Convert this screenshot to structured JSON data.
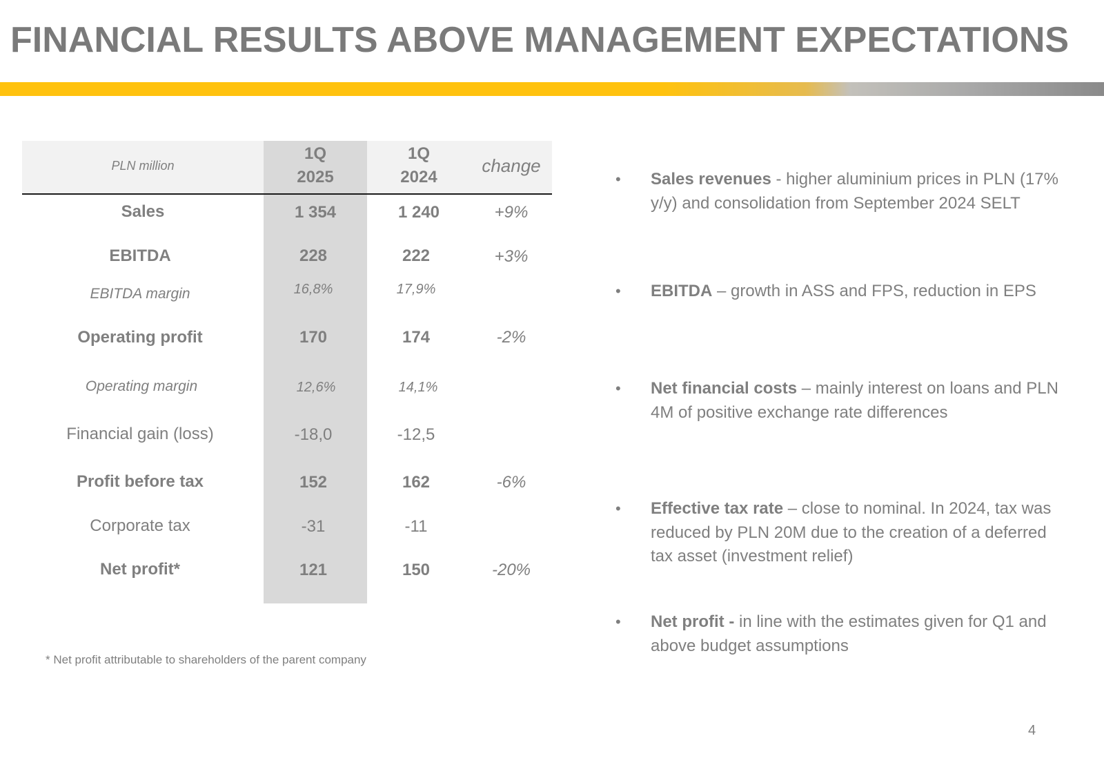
{
  "title": "FINANCIAL RESULTS ABOVE MANAGEMENT EXPECTATIONS",
  "colors": {
    "accent_bar": "#ffc20e",
    "highlight_column": "#d9d9d9",
    "header_bg": "#f2f2f2",
    "text": "#7f7f7f"
  },
  "table": {
    "unit_label": "PLN million",
    "col_2025": {
      "line1": "1Q",
      "line2": "2025"
    },
    "col_2024": {
      "line1": "1Q",
      "line2": "2024"
    },
    "col_change": "change",
    "rows": [
      {
        "label": "Sales",
        "v2025": "1 354",
        "v2024": "1 240",
        "change": "+9%"
      },
      {
        "label": "EBITDA",
        "v2025": "228",
        "v2024": "222",
        "change": "+3%"
      },
      {
        "label": "EBITDA margin",
        "v2025": "16,8%",
        "v2024": "17,9%",
        "change": ""
      },
      {
        "label": "Operating profit",
        "v2025": "170",
        "v2024": "174",
        "change": "-2%"
      },
      {
        "label": "Operating margin",
        "v2025": "12,6%",
        "v2024": "14,1%",
        "change": ""
      },
      {
        "label": "Financial gain (loss)",
        "v2025": "-18,0",
        "v2024": "-12,5",
        "change": ""
      },
      {
        "label": "Profit before tax",
        "v2025": "152",
        "v2024": "162",
        "change": "-6%"
      },
      {
        "label": "Corporate tax",
        "v2025": "-31",
        "v2024": "-11",
        "change": ""
      },
      {
        "label": "Net profit*",
        "v2025": "121",
        "v2024": "150",
        "change": "-20%"
      }
    ]
  },
  "footnote": "* Net profit attributable to shareholders of the parent company",
  "bullets": [
    {
      "bold": "Sales revenues",
      "text": " - higher aluminium prices in PLN (17% y/y) and consolidation from September 2024 SELT"
    },
    {
      "bold": "EBITDA",
      "text": " – growth in ASS and FPS, reduction in EPS"
    },
    {
      "bold": "Net financial costs",
      "text": " – mainly interest on loans and PLN 4M of positive exchange rate differences"
    },
    {
      "bold": "Effective tax rate",
      "text": " – close to nominal. In 2024, tax was reduced by PLN 20M due to the creation of a deferred tax asset (investment relief)"
    },
    {
      "bold": "Net profit -",
      "text": " in line with the estimates given for Q1 and above budget assumptions"
    }
  ],
  "bullet_symbol": "•",
  "page_number": "4"
}
